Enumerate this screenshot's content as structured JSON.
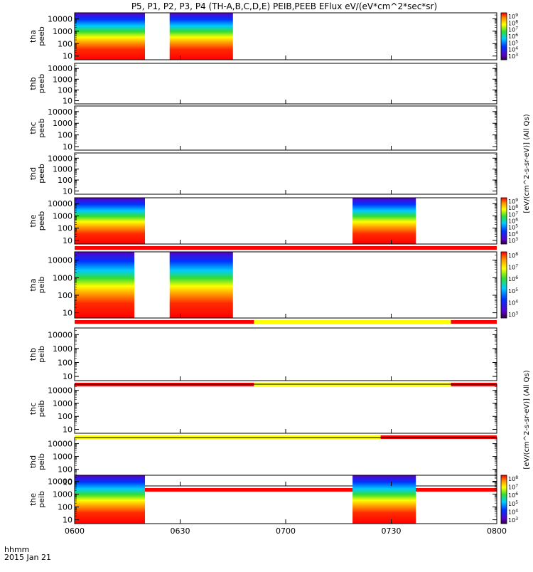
{
  "title": "P5, P1, P2, P3, P4 (TH-A,B,C,D,E) PEIB,PEEB EFlux eV/(eV*cm^2*sec*sr)",
  "footer": {
    "time_label": "hhmm",
    "date_label": "2015 Jan 21"
  },
  "colorbar_labels": {
    "electron": "[eV/(cm^2-s-sr-eV)] (All Qs)",
    "ion": "[eV/(cm^2-s-sr-eV)] (All Qs)"
  },
  "colorbar_ticks": [
    {
      "panel": "tha-peeb",
      "ticks": [
        "10^9",
        "10^8",
        "10^7",
        "10^6",
        "10^5",
        "10^4",
        "10^3"
      ]
    },
    {
      "panel": "the-peeb",
      "ticks": [
        "10^9",
        "10^8",
        "10^7",
        "10^6",
        "10^5",
        "10^4",
        "10^3"
      ]
    },
    {
      "panel": "tha-peib",
      "ticks": [
        "10^8",
        "10^7",
        "10^6",
        "10^5",
        "10^4",
        "10^3"
      ]
    },
    {
      "panel": "the-peib",
      "ticks": [
        "10^8",
        "10^7",
        "10^6",
        "10^5",
        "10^4",
        "10^3"
      ]
    }
  ],
  "colors": {
    "red": "#ff0000",
    "yellow": "#ffff00"
  },
  "chart_data": {
    "type": "heatmap",
    "title": "P5, P1, P2, P3, P4 (TH-A,B,C,D,E) PEIB,PEEB EFlux eV/(eV*cm^2*sec*sr)",
    "x_ticks": [
      "0600",
      "0630",
      "0700",
      "0730",
      "0800"
    ],
    "x_range_minutes": [
      0,
      120
    ],
    "y_ticks": [
      "10",
      "100",
      "1000",
      "10000"
    ],
    "y_range_eV": [
      5,
      30000
    ],
    "y_scale": "log",
    "panels": [
      {
        "id": "tha-peeb",
        "label": [
          "tha",
          "peeb"
        ],
        "data_minutes": [
          [
            0,
            20
          ],
          [
            27,
            45
          ]
        ],
        "colorbar": true
      },
      {
        "id": "thb-peeb",
        "label": [
          "thb",
          "peeb"
        ],
        "data_minutes": [],
        "colorbar": false
      },
      {
        "id": "thc-peeb",
        "label": [
          "thc",
          "peeb"
        ],
        "data_minutes": [],
        "colorbar": false
      },
      {
        "id": "thd-peeb",
        "label": [
          "thd",
          "peeb"
        ],
        "data_minutes": [],
        "colorbar": false
      },
      {
        "id": "the-peeb",
        "label": [
          "the",
          "peeb"
        ],
        "data_minutes": [
          [
            0,
            20
          ],
          [
            79,
            97
          ]
        ],
        "colorbar": true,
        "quality_bar": [
          {
            "from": 0,
            "to": 120,
            "color": "red"
          }
        ]
      },
      {
        "id": "tha-peib",
        "label": [
          "tha",
          "peib"
        ],
        "data_minutes": [
          [
            0,
            17
          ],
          [
            27,
            45
          ]
        ],
        "colorbar": true,
        "quality_bar": [
          {
            "from": 0,
            "to": 51,
            "color": "red"
          },
          {
            "from": 51,
            "to": 107,
            "color": "yellow"
          },
          {
            "from": 107,
            "to": 120,
            "color": "red"
          }
        ]
      },
      {
        "id": "thb-peib",
        "label": [
          "thb",
          "peib"
        ],
        "data_minutes": [],
        "colorbar": false,
        "quality_bar": [
          {
            "from": 0,
            "to": 51,
            "color": "red"
          },
          {
            "from": 51,
            "to": 107,
            "color": "yellow"
          },
          {
            "from": 107,
            "to": 120,
            "color": "red"
          }
        ]
      },
      {
        "id": "thc-peib",
        "label": [
          "thc",
          "peib"
        ],
        "data_minutes": [],
        "colorbar": false,
        "quality_bar": [
          {
            "from": 0,
            "to": 87,
            "color": "yellow"
          },
          {
            "from": 87,
            "to": 120,
            "color": "red"
          }
        ]
      },
      {
        "id": "thd-peib",
        "label": [
          "thd",
          "peib"
        ],
        "data_minutes": [],
        "colorbar": false,
        "quality_bar": [
          {
            "from": 0,
            "to": 120,
            "color": "red"
          }
        ]
      },
      {
        "id": "the-peib",
        "label": [
          "the",
          "peib"
        ],
        "data_minutes": [
          [
            0,
            20
          ],
          [
            79,
            97
          ]
        ],
        "colorbar": true
      }
    ]
  }
}
